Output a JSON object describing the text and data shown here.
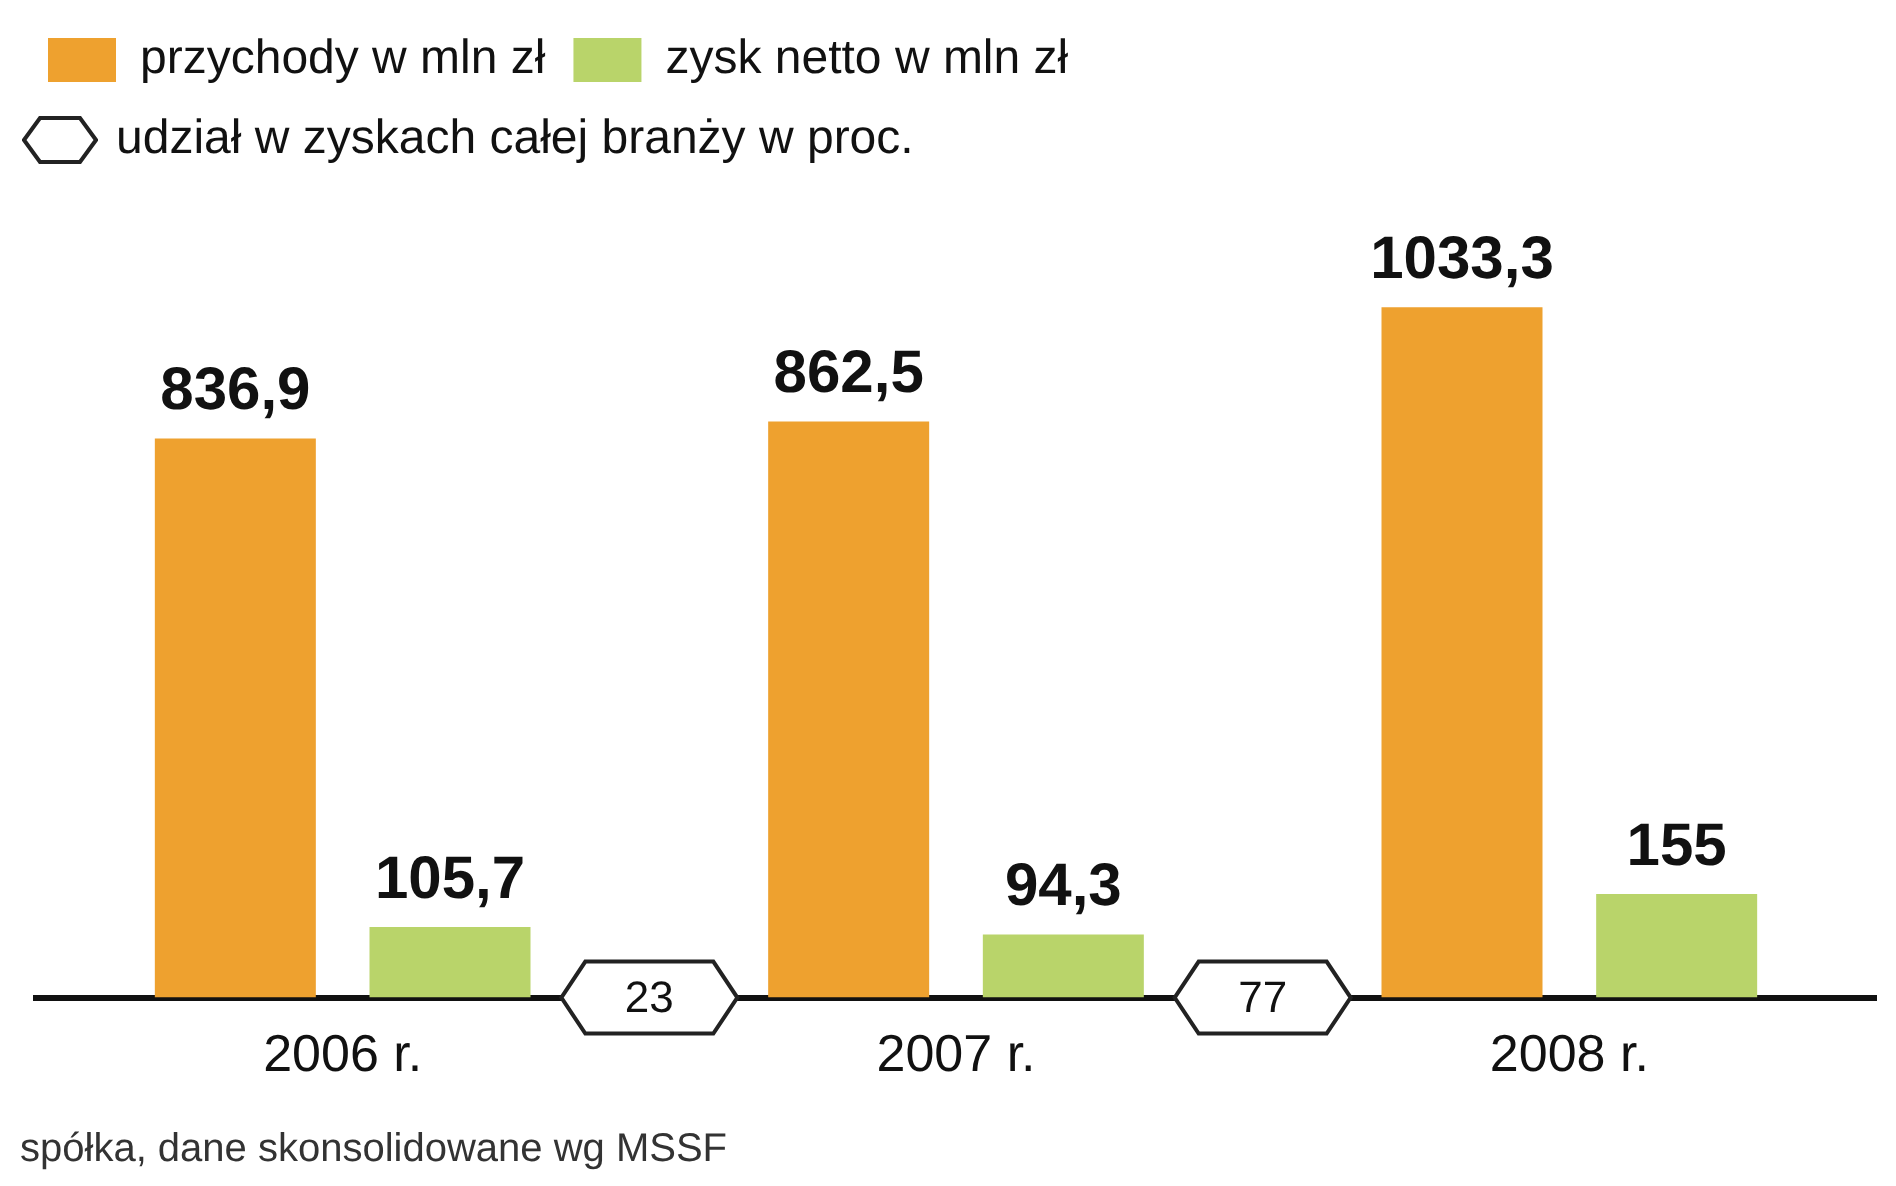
{
  "chart_data": {
    "type": "bar",
    "categories": [
      "2006 r.",
      "2007 r.",
      "2008 r."
    ],
    "series": [
      {
        "name": "przychody w mln zł",
        "color": "#eea12f",
        "values": [
          836.9,
          862.5,
          1033.3
        ],
        "value_labels": [
          "836,9",
          "862,5",
          "1033,3"
        ]
      },
      {
        "name": "zysk netto w mln zł",
        "color": "#b9d46a",
        "values": [
          105.7,
          94.3,
          155
        ],
        "value_labels": [
          "105,7",
          "94,3",
          "155"
        ]
      }
    ],
    "tick_labels": "x",
    "grid": false,
    "legend": "top left",
    "annotations": [
      "23",
      "77",
      "udział w zyskach całej branży w proc.",
      "spółka, dane skonsolidowane wg MSSF"
    ]
  }
}
